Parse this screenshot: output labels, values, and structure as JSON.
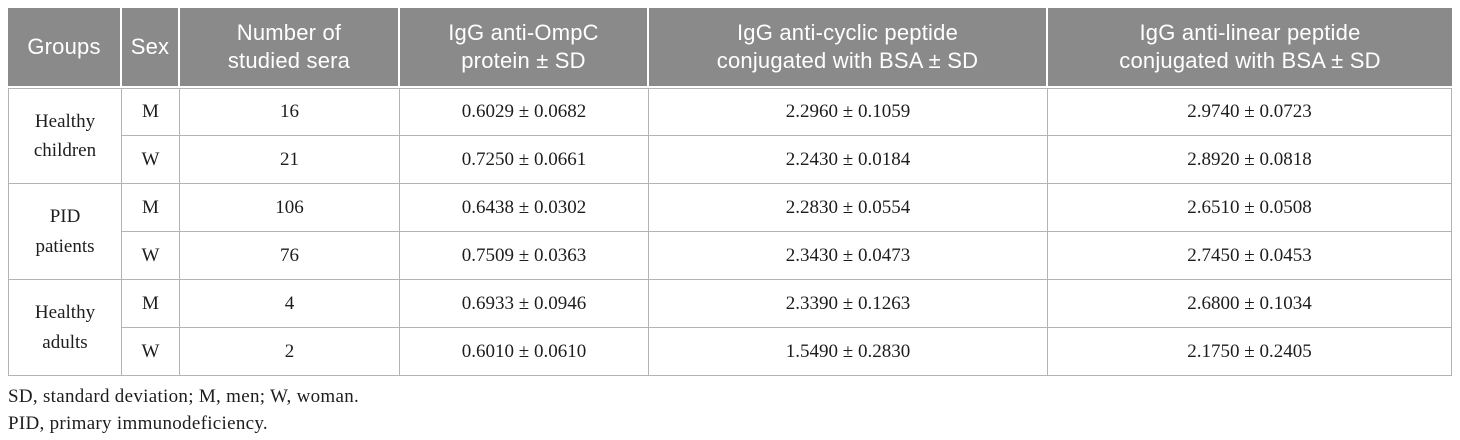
{
  "colors": {
    "header_bg": "#8a8a8a",
    "header_text": "#ffffff",
    "grid": "#b3b3b3",
    "body_text": "#1d1d1d"
  },
  "table": {
    "columns": [
      "Groups",
      "Sex",
      "Number of\nstudied sera",
      "IgG anti-OmpC\nprotein ± SD",
      "IgG anti-cyclic peptide\nconjugated with BSA ± SD",
      "IgG anti-linear peptide\nconjugated with BSA ± SD"
    ],
    "groups": [
      {
        "name": "Healthy\nchildren",
        "rows": [
          {
            "sex": "M",
            "n": "16",
            "ompc": "0.6029 ± 0.0682",
            "cyclic": "2.2960 ± 0.1059",
            "linear": "2.9740 ± 0.0723"
          },
          {
            "sex": "W",
            "n": "21",
            "ompc": "0.7250 ± 0.0661",
            "cyclic": "2.2430 ± 0.0184",
            "linear": "2.8920 ± 0.0818"
          }
        ]
      },
      {
        "name": "PID\npatients",
        "rows": [
          {
            "sex": "M",
            "n": "106",
            "ompc": "0.6438 ± 0.0302",
            "cyclic": "2.2830 ± 0.0554",
            "linear": "2.6510 ± 0.0508"
          },
          {
            "sex": "W",
            "n": "76",
            "ompc": "0.7509 ± 0.0363",
            "cyclic": "2.3430 ± 0.0473",
            "linear": "2.7450 ± 0.0453"
          }
        ]
      },
      {
        "name": "Healthy\nadults",
        "rows": [
          {
            "sex": "M",
            "n": "4",
            "ompc": "0.6933 ± 0.0946",
            "cyclic": "2.3390 ± 0.1263",
            "linear": "2.6800 ± 0.1034"
          },
          {
            "sex": "W",
            "n": "2",
            "ompc": "0.6010 ± 0.0610",
            "cyclic": "1.5490 ± 0.2830",
            "linear": "2.1750 ± 0.2405"
          }
        ]
      }
    ],
    "footnotes": [
      "SD, standard deviation; M, men; W, woman.",
      "PID, primary immunodeficiency."
    ]
  }
}
